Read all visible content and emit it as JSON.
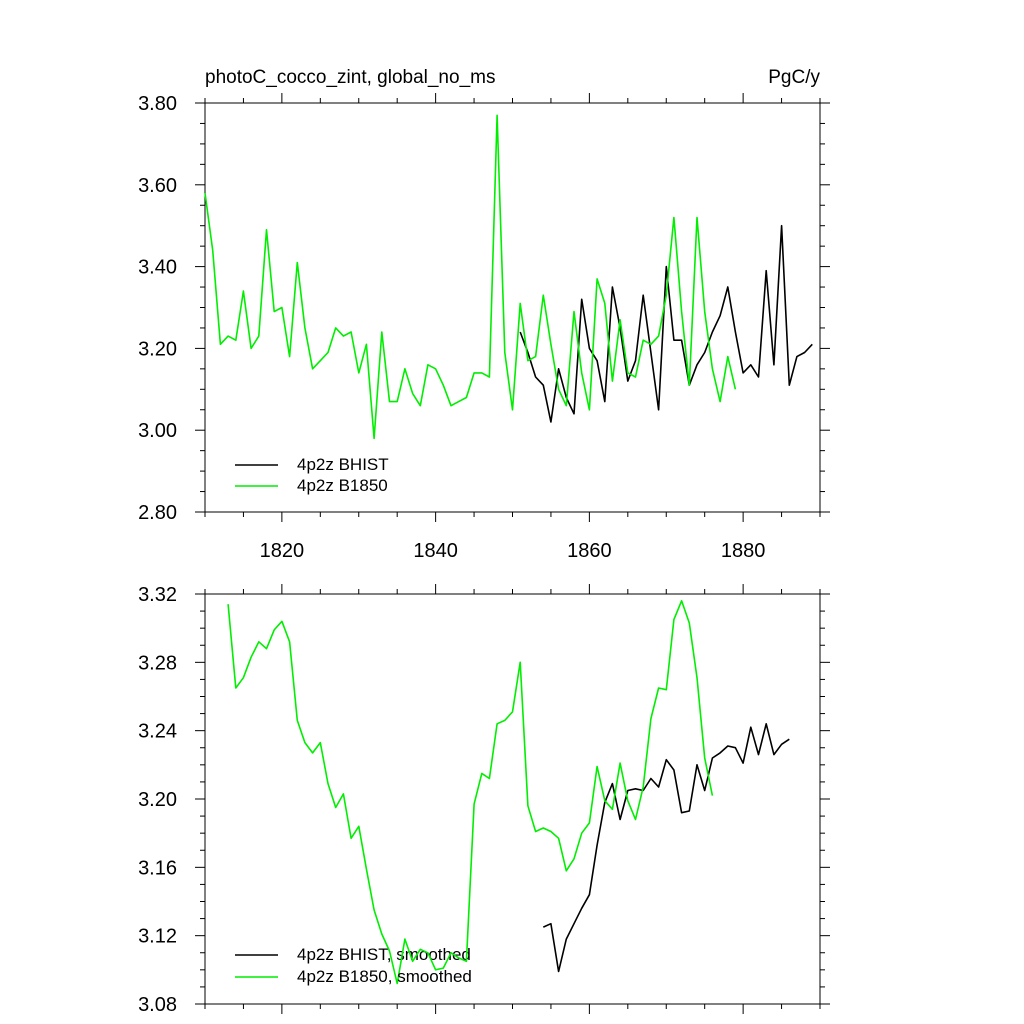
{
  "chart_data": [
    {
      "type": "line",
      "title": "photoC_cocco_zint, global_no_ms",
      "units": "PgC/y",
      "xlim": [
        1810,
        1890
      ],
      "ylim": [
        2.8,
        3.8
      ],
      "x_ticks": [
        1820,
        1840,
        1860,
        1880
      ],
      "y_ticks": [
        "2.80",
        "3.00",
        "3.20",
        "3.40",
        "3.60",
        "3.80"
      ],
      "legend_position": "bottom-left",
      "series": [
        {
          "name": "4p2z BHIST",
          "color": "#000000",
          "x": [
            1851,
            1852,
            1853,
            1854,
            1855,
            1856,
            1857,
            1858,
            1859,
            1860,
            1861,
            1862,
            1863,
            1864,
            1865,
            1866,
            1867,
            1868,
            1869,
            1870,
            1871,
            1872,
            1873,
            1874,
            1875,
            1876,
            1877,
            1878,
            1879,
            1880,
            1881,
            1882,
            1883,
            1884,
            1885,
            1886,
            1887,
            1888,
            1889
          ],
          "y": [
            3.24,
            3.19,
            3.13,
            3.11,
            3.02,
            3.15,
            3.08,
            3.04,
            3.32,
            3.2,
            3.17,
            3.07,
            3.35,
            3.25,
            3.12,
            3.17,
            3.33,
            3.19,
            3.05,
            3.4,
            3.22,
            3.22,
            3.11,
            3.16,
            3.19,
            3.24,
            3.28,
            3.35,
            3.24,
            3.14,
            3.16,
            3.13,
            3.39,
            3.16,
            3.5,
            3.11,
            3.18,
            3.19,
            3.21
          ]
        },
        {
          "name": "4p2z B1850",
          "color": "#00ee00",
          "x": [
            1810,
            1811,
            1812,
            1813,
            1814,
            1815,
            1816,
            1817,
            1818,
            1819,
            1820,
            1821,
            1822,
            1823,
            1824,
            1825,
            1826,
            1827,
            1828,
            1829,
            1830,
            1831,
            1832,
            1833,
            1834,
            1835,
            1836,
            1837,
            1838,
            1839,
            1840,
            1841,
            1842,
            1843,
            1844,
            1845,
            1846,
            1847,
            1848,
            1849,
            1850,
            1851,
            1852,
            1853,
            1854,
            1855,
            1856,
            1857,
            1858,
            1859,
            1860,
            1861,
            1862,
            1863,
            1864,
            1865,
            1866,
            1867,
            1868,
            1869,
            1870,
            1871,
            1872,
            1873,
            1874,
            1875,
            1876,
            1877,
            1878,
            1879
          ],
          "y": [
            3.58,
            3.44,
            3.21,
            3.23,
            3.22,
            3.34,
            3.2,
            3.23,
            3.49,
            3.29,
            3.3,
            3.18,
            3.41,
            3.25,
            3.15,
            3.17,
            3.19,
            3.25,
            3.23,
            3.24,
            3.14,
            3.21,
            2.98,
            3.24,
            3.07,
            3.07,
            3.15,
            3.09,
            3.06,
            3.16,
            3.15,
            3.11,
            3.06,
            3.07,
            3.08,
            3.14,
            3.14,
            3.13,
            3.77,
            3.19,
            3.05,
            3.31,
            3.17,
            3.18,
            3.33,
            3.21,
            3.1,
            3.06,
            3.29,
            3.14,
            3.05,
            3.37,
            3.31,
            3.12,
            3.27,
            3.14,
            3.13,
            3.22,
            3.21,
            3.23,
            3.33,
            3.52,
            3.29,
            3.11,
            3.52,
            3.29,
            3.15,
            3.07,
            3.18,
            3.1
          ]
        }
      ]
    },
    {
      "type": "line",
      "title": "",
      "xlim": [
        1810,
        1890
      ],
      "ylim": [
        3.08,
        3.32
      ],
      "y_ticks": [
        "3.08",
        "3.12",
        "3.16",
        "3.20",
        "3.24",
        "3.28",
        "3.32"
      ],
      "legend_position": "bottom-left",
      "series": [
        {
          "name": "4p2z BHIST, smoothed",
          "color": "#000000",
          "x": [
            1854,
            1855,
            1856,
            1857,
            1858,
            1859,
            1860,
            1861,
            1862,
            1863,
            1864,
            1865,
            1866,
            1867,
            1868,
            1869,
            1870,
            1871,
            1872,
            1873,
            1874,
            1875,
            1876,
            1877,
            1878,
            1879,
            1880,
            1881,
            1882,
            1883,
            1884,
            1885,
            1886
          ],
          "y": [
            3.125,
            3.127,
            3.099,
            3.118,
            3.127,
            3.136,
            3.144,
            3.173,
            3.198,
            3.209,
            3.188,
            3.205,
            3.206,
            3.205,
            3.212,
            3.207,
            3.223,
            3.217,
            3.192,
            3.193,
            3.22,
            3.205,
            3.224,
            3.227,
            3.231,
            3.23,
            3.221,
            3.242,
            3.226,
            3.244,
            3.226,
            3.232,
            3.235
          ]
        },
        {
          "name": "4p2z B1850, smoothed",
          "color": "#00ee00",
          "x": [
            1813,
            1814,
            1815,
            1816,
            1817,
            1818,
            1819,
            1820,
            1821,
            1822,
            1823,
            1824,
            1825,
            1826,
            1827,
            1828,
            1829,
            1830,
            1831,
            1832,
            1833,
            1834,
            1835,
            1836,
            1837,
            1838,
            1839,
            1840,
            1841,
            1842,
            1843,
            1844,
            1845,
            1846,
            1847,
            1848,
            1849,
            1850,
            1851,
            1852,
            1853,
            1854,
            1855,
            1856,
            1857,
            1858,
            1859,
            1860,
            1861,
            1862,
            1863,
            1864,
            1865,
            1866,
            1867,
            1868,
            1869,
            1870,
            1871,
            1872,
            1873,
            1874,
            1875,
            1876
          ],
          "y": [
            3.314,
            3.265,
            3.271,
            3.283,
            3.292,
            3.288,
            3.299,
            3.304,
            3.292,
            3.246,
            3.233,
            3.227,
            3.233,
            3.209,
            3.195,
            3.203,
            3.177,
            3.184,
            3.159,
            3.135,
            3.121,
            3.111,
            3.092,
            3.118,
            3.105,
            3.112,
            3.11,
            3.1,
            3.101,
            3.11,
            3.107,
            3.105,
            3.197,
            3.215,
            3.212,
            3.244,
            3.246,
            3.251,
            3.28,
            3.196,
            3.181,
            3.183,
            3.181,
            3.177,
            3.158,
            3.165,
            3.18,
            3.186,
            3.219,
            3.199,
            3.194,
            3.221,
            3.199,
            3.188,
            3.207,
            3.247,
            3.265,
            3.264,
            3.305,
            3.316,
            3.303,
            3.271,
            3.224,
            3.202
          ]
        }
      ]
    }
  ]
}
